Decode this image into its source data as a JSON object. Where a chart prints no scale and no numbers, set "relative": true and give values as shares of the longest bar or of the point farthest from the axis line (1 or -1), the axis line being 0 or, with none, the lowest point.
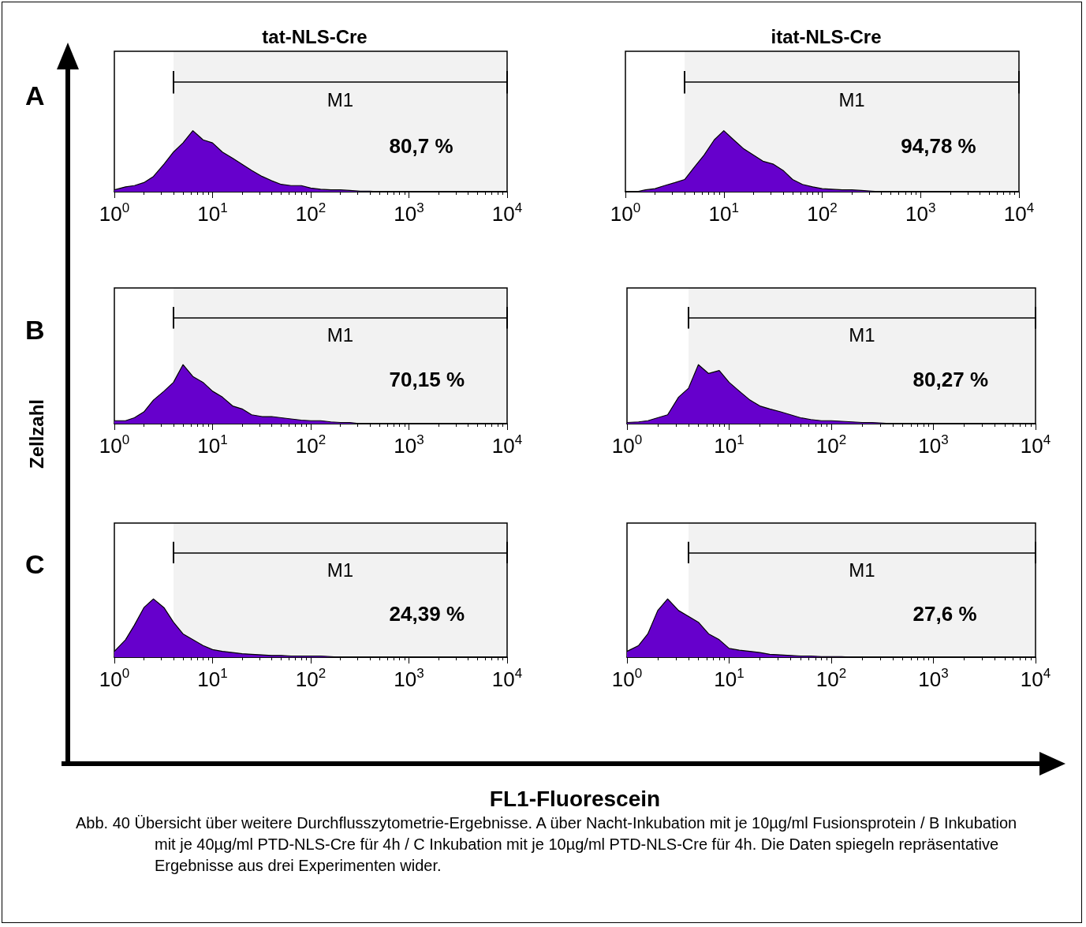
{
  "chart_data": [
    {
      "type": "area",
      "title": "tat-NLS-Cre",
      "ylabel": "A",
      "relative": true,
      "log": "x",
      "tick_labels": "x",
      "grid": false,
      "marker": "none",
      "xlim": [
        1,
        10000
      ],
      "xticks": [
        {
          "value": 1,
          "label": "10$^{0}$"
        },
        {
          "value": 10,
          "label": "10$^{1}$"
        },
        {
          "value": 100,
          "label": "10$^{2}$"
        },
        {
          "value": 1000,
          "label": "10$^{3}$"
        },
        {
          "value": 10000,
          "label": "10$^{4}$"
        }
      ],
      "x": [
        1,
        1.3,
        1.6,
        2,
        2.5,
        3.2,
        4,
        5,
        6.3,
        8,
        10,
        12.6,
        16,
        20,
        25,
        32,
        40,
        50,
        63,
        80,
        100,
        126,
        160,
        200,
        250,
        320,
        400,
        500,
        1000,
        10000
      ],
      "series": [
        {
          "color": "#6600cc",
          "values": [
            0.03,
            0.08,
            0.1,
            0.15,
            0.25,
            0.45,
            0.65,
            0.8,
            1,
            0.85,
            0.8,
            0.65,
            0.55,
            0.45,
            0.35,
            0.25,
            0.18,
            0.12,
            0.1,
            0.1,
            0.06,
            0.04,
            0.03,
            0.03,
            0.02,
            0.01,
            0.01,
            0,
            0,
            0
          ]
        }
      ],
      "bands": [
        {
          "axis": "x",
          "from": 4,
          "to": 10000,
          "label": "M1"
        }
      ],
      "annotations": [
        "80,7 %"
      ]
    },
    {
      "type": "area",
      "title": "itat-NLS-Cre",
      "relative": true,
      "log": "x",
      "tick_labels": "x",
      "grid": false,
      "marker": "none",
      "xlim": [
        1,
        10000
      ],
      "xticks": [
        {
          "value": 1,
          "label": "10$^{0}$"
        },
        {
          "value": 10,
          "label": "10$^{1}$"
        },
        {
          "value": 100,
          "label": "10$^{2}$"
        },
        {
          "value": 1000,
          "label": "10$^{3}$"
        },
        {
          "value": 10000,
          "label": "10$^{4}$"
        }
      ],
      "x": [
        1,
        1.3,
        1.6,
        2,
        2.5,
        3.2,
        4,
        5,
        6.3,
        8,
        10,
        12.6,
        16,
        20,
        25,
        32,
        40,
        50,
        63,
        80,
        100,
        126,
        160,
        200,
        250,
        320,
        400,
        500,
        1000,
        10000
      ],
      "series": [
        {
          "color": "#6600cc",
          "values": [
            0,
            0,
            0.03,
            0.05,
            0.1,
            0.15,
            0.2,
            0.4,
            0.6,
            0.85,
            1,
            0.85,
            0.7,
            0.6,
            0.5,
            0.45,
            0.35,
            0.2,
            0.12,
            0.08,
            0.05,
            0.04,
            0.03,
            0.03,
            0.02,
            0.01,
            0,
            0,
            0,
            0
          ]
        }
      ],
      "bands": [
        {
          "axis": "x",
          "from": 4,
          "to": 10000,
          "label": "M1"
        }
      ],
      "annotations": [
        "94,78 %"
      ]
    },
    {
      "type": "area",
      "ylabel": "B",
      "relative": true,
      "log": "x",
      "tick_labels": "x",
      "grid": false,
      "marker": "none",
      "xlim": [
        1,
        10000
      ],
      "xticks": [
        {
          "value": 1,
          "label": "10$^{0}$"
        },
        {
          "value": 10,
          "label": "10$^{1}$"
        },
        {
          "value": 100,
          "label": "10$^{2}$"
        },
        {
          "value": 1000,
          "label": "10$^{3}$"
        },
        {
          "value": 10000,
          "label": "10$^{4}$"
        }
      ],
      "x": [
        1,
        1.3,
        1.6,
        2,
        2.5,
        3.2,
        4,
        5,
        6.3,
        8,
        10,
        12.6,
        16,
        20,
        25,
        32,
        40,
        50,
        63,
        80,
        100,
        126,
        160,
        200,
        250,
        320,
        400,
        500,
        1000,
        10000
      ],
      "series": [
        {
          "color": "#6600cc",
          "values": [
            0.05,
            0.05,
            0.1,
            0.2,
            0.4,
            0.55,
            0.7,
            1,
            0.8,
            0.7,
            0.55,
            0.45,
            0.3,
            0.25,
            0.15,
            0.12,
            0.12,
            0.1,
            0.08,
            0.06,
            0.05,
            0.05,
            0.03,
            0.02,
            0.02,
            0,
            0,
            0,
            0,
            0
          ]
        }
      ],
      "bands": [
        {
          "axis": "x",
          "from": 4,
          "to": 10000,
          "label": "M1"
        }
      ],
      "annotations": [
        "70,15 %"
      ]
    },
    {
      "type": "area",
      "relative": true,
      "log": "x",
      "tick_labels": "x",
      "grid": false,
      "marker": "none",
      "xlim": [
        1,
        10000
      ],
      "xticks": [
        {
          "value": 1,
          "label": "10$^{0}$"
        },
        {
          "value": 10,
          "label": "10$^{1}$"
        },
        {
          "value": 100,
          "label": "10$^{2}$"
        },
        {
          "value": 1000,
          "label": "10$^{3}$"
        },
        {
          "value": 10000,
          "label": "10$^{4}$"
        }
      ],
      "x": [
        1,
        1.3,
        1.6,
        2,
        2.5,
        3.2,
        4,
        5,
        6.3,
        8,
        10,
        12.6,
        16,
        20,
        25,
        32,
        40,
        50,
        63,
        80,
        100,
        126,
        160,
        200,
        250,
        320,
        400,
        500,
        1000,
        10000
      ],
      "series": [
        {
          "color": "#6600cc",
          "values": [
            0.02,
            0.03,
            0.05,
            0.1,
            0.15,
            0.45,
            0.6,
            1,
            0.85,
            0.9,
            0.7,
            0.55,
            0.4,
            0.3,
            0.25,
            0.2,
            0.15,
            0.1,
            0.07,
            0.05,
            0.05,
            0.04,
            0.03,
            0.02,
            0.02,
            0.01,
            0,
            0,
            0,
            0
          ]
        }
      ],
      "bands": [
        {
          "axis": "x",
          "from": 4,
          "to": 10000,
          "label": "M1"
        }
      ],
      "annotations": [
        "80,27 %"
      ]
    },
    {
      "type": "area",
      "ylabel": "C",
      "relative": true,
      "log": "x",
      "tick_labels": "x",
      "grid": false,
      "marker": "none",
      "xlim": [
        1,
        10000
      ],
      "xticks": [
        {
          "value": 1,
          "label": "10$^{0}$"
        },
        {
          "value": 10,
          "label": "10$^{1}$"
        },
        {
          "value": 100,
          "label": "10$^{2}$"
        },
        {
          "value": 1000,
          "label": "10$^{3}$"
        },
        {
          "value": 10000,
          "label": "10$^{4}$"
        }
      ],
      "x": [
        1,
        1.3,
        1.6,
        2,
        2.5,
        3.2,
        4,
        5,
        6.3,
        8,
        10,
        12.6,
        16,
        20,
        25,
        32,
        40,
        50,
        63,
        80,
        100,
        126,
        160,
        200,
        250,
        320,
        400,
        500,
        1000,
        10000
      ],
      "series": [
        {
          "color": "#6600cc",
          "values": [
            0.1,
            0.3,
            0.55,
            0.85,
            1,
            0.85,
            0.6,
            0.4,
            0.3,
            0.2,
            0.13,
            0.1,
            0.08,
            0.06,
            0.05,
            0.04,
            0.03,
            0.03,
            0.02,
            0.02,
            0.02,
            0.02,
            0.01,
            0,
            0,
            0,
            0,
            0,
            0,
            0
          ]
        }
      ],
      "bands": [
        {
          "axis": "x",
          "from": 4,
          "to": 10000,
          "label": "M1"
        }
      ],
      "annotations": [
        "24,39 %"
      ]
    },
    {
      "type": "area",
      "relative": true,
      "log": "x",
      "tick_labels": "x",
      "grid": false,
      "marker": "none",
      "xlim": [
        1,
        10000
      ],
      "xticks": [
        {
          "value": 1,
          "label": "10$^{0}$"
        },
        {
          "value": 10,
          "label": "10$^{1}$"
        },
        {
          "value": 100,
          "label": "10$^{2}$"
        },
        {
          "value": 1000,
          "label": "10$^{3}$"
        },
        {
          "value": 10000,
          "label": "10$^{4}$"
        }
      ],
      "x": [
        1,
        1.3,
        1.6,
        2,
        2.5,
        3.2,
        4,
        5,
        6.3,
        8,
        10,
        12.6,
        16,
        20,
        25,
        32,
        40,
        50,
        63,
        80,
        100,
        126,
        160,
        200,
        250,
        320,
        400,
        500,
        1000,
        10000
      ],
      "series": [
        {
          "color": "#6600cc",
          "values": [
            0.1,
            0.2,
            0.4,
            0.8,
            1,
            0.8,
            0.7,
            0.6,
            0.4,
            0.3,
            0.15,
            0.12,
            0.1,
            0.08,
            0.05,
            0.04,
            0.03,
            0.02,
            0.02,
            0.01,
            0.01,
            0.01,
            0,
            0,
            0,
            0,
            0,
            0,
            0,
            0
          ]
        }
      ],
      "bands": [
        {
          "axis": "x",
          "from": 4,
          "to": 10000,
          "label": "M1"
        }
      ],
      "annotations": [
        "27,6 %"
      ]
    },
    {
      "type": "other",
      "xlabel": "FL1-Fluorescein",
      "ylabel": "Zellzahl",
      "annotations": [
        "Abb. 40 Übersicht über weitere Durchflusszytometrie-Ergebnisse. A über Nacht-Inkubation mit je 10µg/ml Fusionsprotein / B Inkubation mit je 40µg/ml PTD-NLS-Cre für 4h / C Inkubation mit je 10µg/ml PTD-NLS-Cre für 4h. Die Daten spiegeln repräsentative Ergebnisse aus drei Experimenten wider."
      ]
    }
  ]
}
